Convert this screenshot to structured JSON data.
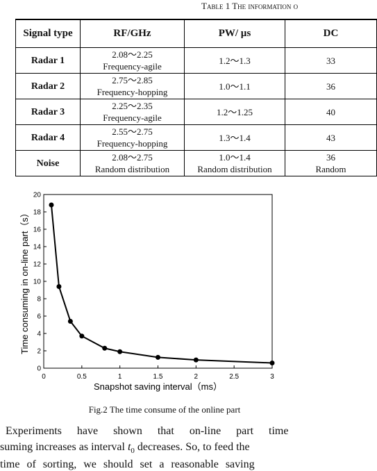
{
  "table": {
    "caption": "Table 1 The information o",
    "header": [
      "Signal type",
      "RF/GHz",
      "PW/ µs",
      "DC"
    ],
    "rows": [
      [
        [
          "Radar 1"
        ],
        [
          "2.08～2.25",
          "Frequency-agile"
        ],
        [
          "1.2～1.3"
        ],
        [
          "33"
        ]
      ],
      [
        [
          "Radar 2"
        ],
        [
          "2.75～2.85",
          "Frequency-hopping"
        ],
        [
          "1.0～1.1"
        ],
        [
          "36"
        ]
      ],
      [
        [
          "Radar 3"
        ],
        [
          "2.25～2.35",
          "Frequency-agile"
        ],
        [
          "1.2～1.25"
        ],
        [
          "40"
        ]
      ],
      [
        [
          "Radar 4"
        ],
        [
          "2.55～2.75",
          "Frequency-hopping"
        ],
        [
          "1.3～1.4"
        ],
        [
          "43"
        ]
      ],
      [
        [
          "Noise"
        ],
        [
          "2.08～2.75",
          "Random distribution"
        ],
        [
          "1.0～1.4",
          "Random distribution"
        ],
        [
          "36",
          "Random"
        ]
      ]
    ]
  },
  "chart_data": {
    "type": "line",
    "x_label": "Snapshot saving interval（ms）",
    "y_label": "Time consuming in on-line part（s）",
    "x": [
      0.1,
      0.2,
      0.35,
      0.5,
      0.8,
      1,
      1.5,
      2,
      3
    ],
    "values": [
      18.8,
      9.4,
      5.4,
      3.7,
      2.3,
      1.9,
      1.25,
      0.95,
      0.6
    ],
    "color": "#000000",
    "xlim": [
      0,
      3
    ],
    "xticks": [
      0,
      0.5,
      1,
      1.5,
      2,
      2.5,
      3
    ],
    "ylim": [
      0,
      20
    ],
    "yticks": [
      0,
      2,
      4,
      6,
      8,
      10,
      12,
      14,
      16,
      18,
      20
    ]
  },
  "figure_caption": "Fig.2 The time consume of the online part",
  "paragraph": {
    "line1": "Experiments have shown that on-line part time",
    "line2_before": "suming increases as interval ",
    "line2_var": "t",
    "line2_sub": "0",
    "line2_after": " decreases. So, to feed the",
    "line3": "time of sorting, we should set a reasonable saving"
  }
}
